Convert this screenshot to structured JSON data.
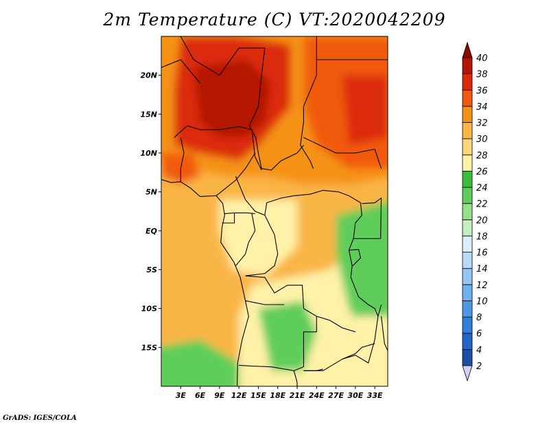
{
  "title": "2m Temperature (C) VT:2020042209",
  "credit": "GrADS: IGES/COLA",
  "map": {
    "lon_range": [
      0,
      35
    ],
    "lat_range": [
      -20,
      25
    ],
    "lat_labels": [
      {
        "lat": 20,
        "text": "20N"
      },
      {
        "lat": 15,
        "text": "15N"
      },
      {
        "lat": 10,
        "text": "10N"
      },
      {
        "lat": 5,
        "text": "5N"
      },
      {
        "lat": 0,
        "text": "EQ"
      },
      {
        "lat": -5,
        "text": "5S"
      },
      {
        "lat": -10,
        "text": "10S"
      },
      {
        "lat": -15,
        "text": "15S"
      }
    ],
    "lon_labels": [
      {
        "lon": 3,
        "text": "3E"
      },
      {
        "lon": 6,
        "text": "6E"
      },
      {
        "lon": 9,
        "text": "9E"
      },
      {
        "lon": 12,
        "text": "12E"
      },
      {
        "lon": 15,
        "text": "15E"
      },
      {
        "lon": 18,
        "text": "18E"
      },
      {
        "lon": 21,
        "text": "21E"
      },
      {
        "lon": 24,
        "text": "24E"
      },
      {
        "lon": 27,
        "text": "27E"
      },
      {
        "lon": 30,
        "text": "30E"
      },
      {
        "lon": 33,
        "text": "33E"
      }
    ]
  },
  "colorbar": {
    "levels": [
      "2",
      "4",
      "6",
      "8",
      "10",
      "12",
      "14",
      "16",
      "18",
      "20",
      "22",
      "24",
      "26",
      "28",
      "30",
      "32",
      "34",
      "36",
      "38",
      "40"
    ],
    "colors": [
      "#1b1b78",
      "#1a4fa8",
      "#1f66c8",
      "#2f80dd",
      "#4d98e6",
      "#6eb0ee",
      "#93c6f3",
      "#b6dcf7",
      "#dbf0fb",
      "#c4f0c0",
      "#96e08d",
      "#5fcd5a",
      "#3cbb3c",
      "#fff2a8",
      "#fdd57a",
      "#f9b545",
      "#f59213",
      "#f15a0d",
      "#dc2a09",
      "#b41406",
      "#8b0b03"
    ]
  }
}
